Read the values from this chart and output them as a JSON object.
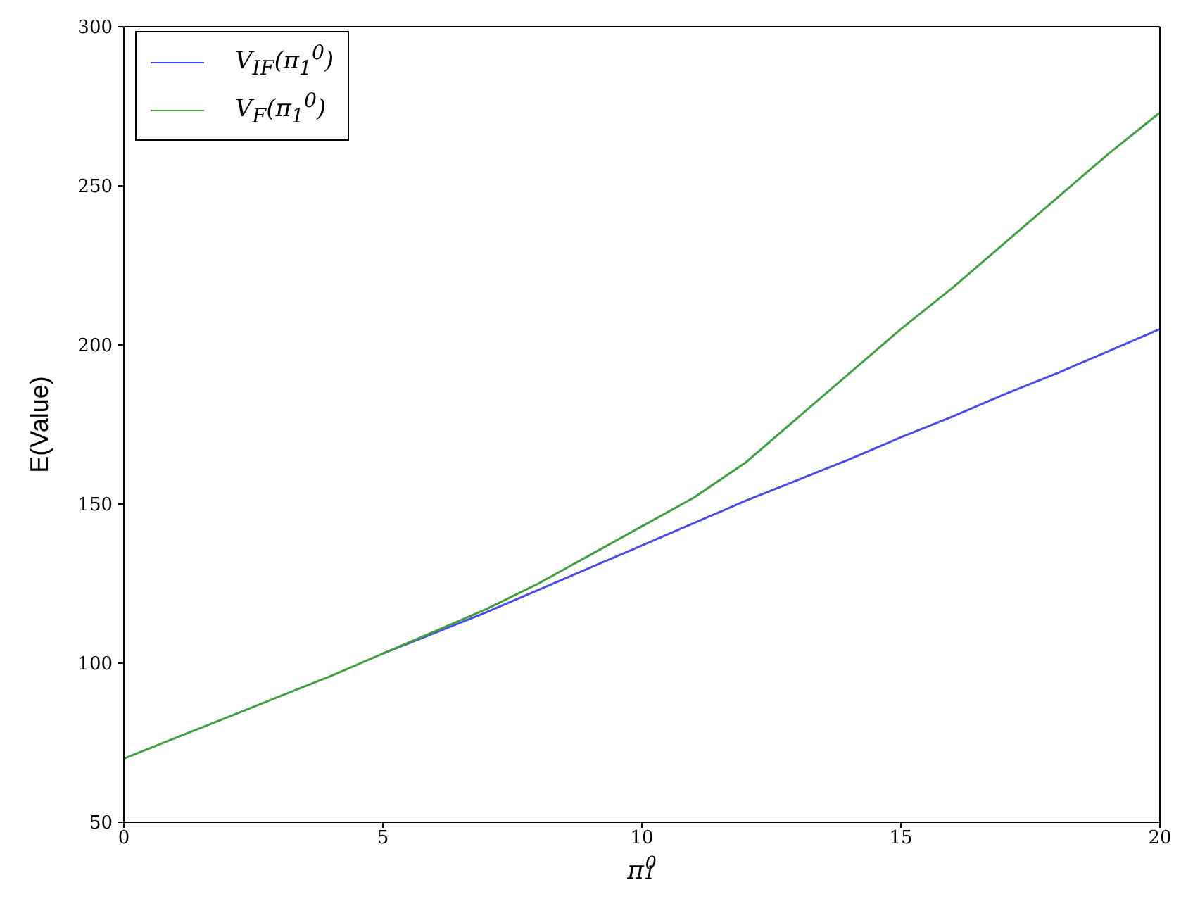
{
  "chart_data": {
    "type": "line",
    "xlabel": "π$_{1}$$^{0}$",
    "ylabel": "E(Value)",
    "x": [
      0,
      1,
      2,
      3,
      4,
      5,
      6,
      7,
      8,
      9,
      10,
      11,
      12,
      13,
      14,
      15,
      16,
      17,
      18,
      19,
      20
    ],
    "series": [
      {
        "name": "V$_{IF}$(π$_{1}$$^{0}$)",
        "color": "#4a4ae6",
        "values": [
          null,
          null,
          null,
          null,
          null,
          103,
          109.5,
          116,
          123,
          130,
          137,
          144,
          151,
          157.5,
          164,
          171,
          177.5,
          184.5,
          191,
          198,
          205
        ]
      },
      {
        "name": "V$_{F}$(π$_{1}$$^{0}$)",
        "color": "#3f9f3f",
        "values": [
          70,
          76.5,
          83,
          89.5,
          96,
          103,
          110,
          117,
          125,
          134,
          143,
          152,
          163,
          177,
          191,
          205,
          218,
          232,
          246,
          260,
          273
        ]
      }
    ],
    "xlim": [
      0,
      20
    ],
    "xticks": [
      0,
      5,
      10,
      15,
      20
    ],
    "ylim": [
      50,
      300
    ],
    "yticks": [
      50,
      100,
      150,
      200,
      250,
      300
    ],
    "grid": false,
    "legend": "top left",
    "marker": "none",
    "line_style": "solid"
  }
}
